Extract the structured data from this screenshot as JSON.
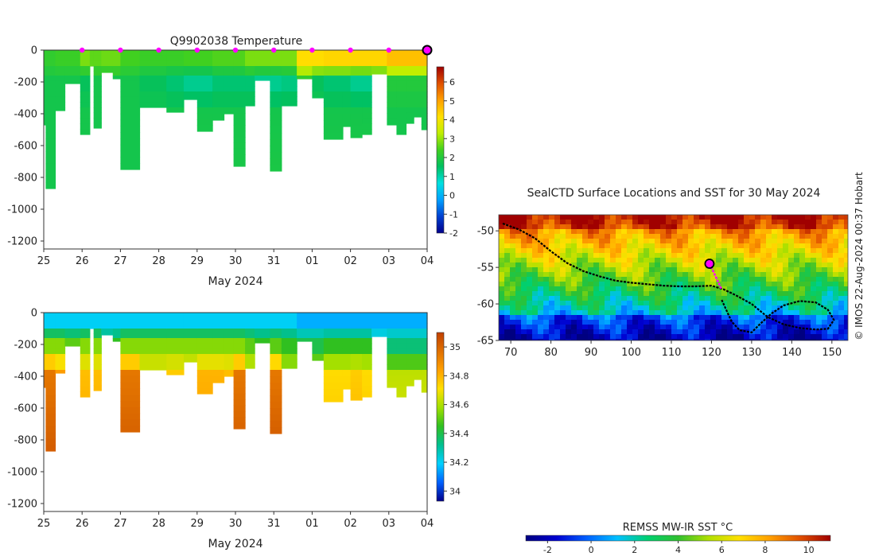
{
  "colors": {
    "temp_scale": [
      "#00008b",
      "#0040d0",
      "#00a0ff",
      "#00e0e0",
      "#00c060",
      "#40d020",
      "#c0ee00",
      "#ffe000",
      "#ffa000",
      "#e05000",
      "#a00000"
    ],
    "sal_scale": [
      "#00008b",
      "#0060ff",
      "#00d0ff",
      "#00c090",
      "#30c020",
      "#a0e000",
      "#ffe000",
      "#ffa000",
      "#e07000",
      "#c04000"
    ],
    "sst_scale": [
      "#000080",
      "#0000d0",
      "#0060ff",
      "#00c0ff",
      "#00d070",
      "#30c030",
      "#b0e000",
      "#ffe000",
      "#ffa000",
      "#e05000",
      "#a00000"
    ],
    "station_marker": "#ff00ff",
    "track": "#000000"
  },
  "chart_data": [
    {
      "id": "temperature_section",
      "type": "heatmap",
      "title": "Q9902038  Temperature",
      "xlabel": "May 2024",
      "ylabel": "",
      "x_ticks": [
        "25",
        "26",
        "27",
        "28",
        "29",
        "30",
        "31",
        "01",
        "02",
        "03",
        "04"
      ],
      "x_range": [
        25,
        35
      ],
      "y_ticks": [
        0,
        -200,
        -400,
        -600,
        -800,
        -1000,
        -1200
      ],
      "ylim": [
        -1250,
        0
      ],
      "colorbar": {
        "ticks": [
          -2,
          -1,
          0,
          1,
          2,
          3,
          4,
          5,
          6
        ],
        "range": [
          -2,
          6.8
        ]
      },
      "station_markers_day": [
        26,
        27,
        28,
        29,
        30,
        31,
        32,
        33,
        34
      ],
      "last_station_day": 35,
      "profiles": [
        {
          "t0": 25.0,
          "t1": 25.05,
          "depth": 470,
          "surf": 2.2,
          "mid": 1.8,
          "deep": 1.8
        },
        {
          "t0": 25.05,
          "t1": 25.3,
          "depth": 870,
          "surf": 2.2,
          "mid": 1.8,
          "deep": 1.8
        },
        {
          "t0": 25.3,
          "t1": 25.55,
          "depth": 380,
          "surf": 2.3,
          "mid": 1.8,
          "deep": 1.8
        },
        {
          "t0": 25.55,
          "t1": 25.95,
          "depth": 210,
          "surf": 2.3,
          "mid": 1.8,
          "deep": 1.8
        },
        {
          "t0": 25.95,
          "t1": 26.2,
          "depth": 530,
          "surf": 2.8,
          "mid": 1.6,
          "deep": 1.8
        },
        {
          "t0": 26.2,
          "t1": 26.3,
          "depth": 100,
          "surf": 2.6,
          "mid": 1.8,
          "deep": 1.8
        },
        {
          "t0": 26.3,
          "t1": 26.5,
          "depth": 490,
          "surf": 2.6,
          "mid": 1.8,
          "deep": 1.8
        },
        {
          "t0": 26.5,
          "t1": 26.8,
          "depth": 140,
          "surf": 2.7,
          "mid": 1.8,
          "deep": 1.8
        },
        {
          "t0": 26.8,
          "t1": 27.0,
          "depth": 180,
          "surf": 2.7,
          "mid": 1.8,
          "deep": 1.8
        },
        {
          "t0": 27.0,
          "t1": 27.5,
          "depth": 750,
          "surf": 2.4,
          "mid": 1.8,
          "deep": 1.8
        },
        {
          "t0": 27.5,
          "t1": 28.2,
          "depth": 360,
          "surf": 2.3,
          "mid": 1.6,
          "deep": 1.8
        },
        {
          "t0": 28.2,
          "t1": 28.65,
          "depth": 390,
          "surf": 2.3,
          "mid": 1.4,
          "deep": 1.8
        },
        {
          "t0": 28.65,
          "t1": 29.0,
          "depth": 310,
          "surf": 2.4,
          "mid": 1.2,
          "deep": 1.8
        },
        {
          "t0": 29.0,
          "t1": 29.4,
          "depth": 510,
          "surf": 2.4,
          "mid": 1.2,
          "deep": 1.8
        },
        {
          "t0": 29.4,
          "t1": 29.7,
          "depth": 440,
          "surf": 2.5,
          "mid": 1.4,
          "deep": 1.8
        },
        {
          "t0": 29.7,
          "t1": 29.95,
          "depth": 400,
          "surf": 2.5,
          "mid": 1.4,
          "deep": 1.8
        },
        {
          "t0": 29.95,
          "t1": 30.25,
          "depth": 730,
          "surf": 2.5,
          "mid": 1.4,
          "deep": 1.8
        },
        {
          "t0": 30.25,
          "t1": 30.5,
          "depth": 350,
          "surf": 2.8,
          "mid": 1.4,
          "deep": 1.8
        },
        {
          "t0": 30.5,
          "t1": 30.9,
          "depth": 190,
          "surf": 2.8,
          "mid": 1.2,
          "deep": 1.8
        },
        {
          "t0": 30.9,
          "t1": 31.2,
          "depth": 760,
          "surf": 2.8,
          "mid": 1.2,
          "deep": 1.8
        },
        {
          "t0": 31.2,
          "t1": 31.6,
          "depth": 350,
          "surf": 2.8,
          "mid": 1.3,
          "deep": 1.8
        },
        {
          "t0": 31.6,
          "t1": 32.0,
          "depth": 180,
          "surf": 4.2,
          "mid": 2.2,
          "deep": 1.8
        },
        {
          "t0": 32.0,
          "t1": 32.3,
          "depth": 300,
          "surf": 4.2,
          "mid": 1.6,
          "deep": 1.8
        },
        {
          "t0": 32.3,
          "t1": 32.8,
          "depth": 560,
          "surf": 4.3,
          "mid": 1.4,
          "deep": 1.8
        },
        {
          "t0": 32.8,
          "t1": 33.0,
          "depth": 480,
          "surf": 4.3,
          "mid": 1.4,
          "deep": 1.8
        },
        {
          "t0": 33.0,
          "t1": 33.3,
          "depth": 550,
          "surf": 4.3,
          "mid": 1.2,
          "deep": 1.8
        },
        {
          "t0": 33.3,
          "t1": 33.55,
          "depth": 530,
          "surf": 4.3,
          "mid": 1.2,
          "deep": 1.8
        },
        {
          "t0": 33.55,
          "t1": 33.95,
          "depth": 150,
          "surf": 4.3,
          "mid": 1.4,
          "deep": 1.8
        },
        {
          "t0": 33.95,
          "t1": 34.2,
          "depth": 470,
          "surf": 4.6,
          "mid": 2.0,
          "deep": 1.8
        },
        {
          "t0": 34.2,
          "t1": 34.45,
          "depth": 530,
          "surf": 4.6,
          "mid": 2.0,
          "deep": 1.8
        },
        {
          "t0": 34.45,
          "t1": 34.65,
          "depth": 460,
          "surf": 4.6,
          "mid": 2.0,
          "deep": 1.8
        },
        {
          "t0": 34.65,
          "t1": 34.85,
          "depth": 420,
          "surf": 4.6,
          "mid": 2.0,
          "deep": 1.8
        },
        {
          "t0": 34.85,
          "t1": 35.0,
          "depth": 500,
          "surf": 4.6,
          "mid": 2.0,
          "deep": 1.8
        }
      ]
    },
    {
      "id": "salinity_section",
      "type": "heatmap",
      "title": "",
      "xlabel": "May 2024",
      "ylabel": "",
      "x_ticks": [
        "25",
        "26",
        "27",
        "28",
        "29",
        "30",
        "31",
        "01",
        "02",
        "03",
        "04"
      ],
      "x_range": [
        25,
        35
      ],
      "y_ticks": [
        0,
        -200,
        -400,
        -600,
        -800,
        -1000,
        -1200
      ],
      "ylim": [
        -1250,
        0
      ],
      "colorbar": {
        "ticks": [
          34,
          34.2,
          34.4,
          34.6,
          34.8,
          35
        ],
        "range": [
          33.93,
          35.1
        ]
      },
      "profiles": [
        {
          "t0": 25.0,
          "t1": 25.05,
          "depth": 470,
          "surf": 34.2,
          "mid": 34.55,
          "deep": 34.95
        },
        {
          "t0": 25.05,
          "t1": 25.3,
          "depth": 870,
          "surf": 34.2,
          "mid": 34.55,
          "deep": 34.95
        },
        {
          "t0": 25.3,
          "t1": 25.55,
          "depth": 380,
          "surf": 34.2,
          "mid": 34.55,
          "deep": 34.85
        },
        {
          "t0": 25.55,
          "t1": 25.95,
          "depth": 210,
          "surf": 34.2,
          "mid": 34.5,
          "deep": 34.6
        },
        {
          "t0": 25.95,
          "t1": 26.2,
          "depth": 530,
          "surf": 34.2,
          "mid": 34.55,
          "deep": 34.78
        },
        {
          "t0": 26.2,
          "t1": 26.3,
          "depth": 100,
          "surf": 34.2,
          "mid": 34.4,
          "deep": 34.4
        },
        {
          "t0": 26.3,
          "t1": 26.5,
          "depth": 490,
          "surf": 34.2,
          "mid": 34.55,
          "deep": 34.78
        },
        {
          "t0": 26.5,
          "t1": 26.8,
          "depth": 140,
          "surf": 34.2,
          "mid": 34.4,
          "deep": 34.45
        },
        {
          "t0": 26.8,
          "t1": 27.0,
          "depth": 180,
          "surf": 34.2,
          "mid": 34.45,
          "deep": 34.5
        },
        {
          "t0": 27.0,
          "t1": 27.5,
          "depth": 750,
          "surf": 34.2,
          "mid": 34.55,
          "deep": 34.95
        },
        {
          "t0": 27.5,
          "t1": 28.2,
          "depth": 360,
          "surf": 34.2,
          "mid": 34.55,
          "deep": 34.72
        },
        {
          "t0": 28.2,
          "t1": 28.65,
          "depth": 390,
          "surf": 34.2,
          "mid": 34.55,
          "deep": 34.75
        },
        {
          "t0": 28.65,
          "t1": 29.0,
          "depth": 310,
          "surf": 34.2,
          "mid": 34.55,
          "deep": 34.7
        },
        {
          "t0": 29.0,
          "t1": 29.4,
          "depth": 510,
          "surf": 34.2,
          "mid": 34.55,
          "deep": 34.8
        },
        {
          "t0": 29.4,
          "t1": 29.7,
          "depth": 440,
          "surf": 34.2,
          "mid": 34.55,
          "deep": 34.8
        },
        {
          "t0": 29.7,
          "t1": 29.95,
          "depth": 400,
          "surf": 34.2,
          "mid": 34.55,
          "deep": 34.78
        },
        {
          "t0": 29.95,
          "t1": 30.25,
          "depth": 730,
          "surf": 34.2,
          "mid": 34.55,
          "deep": 34.95
        },
        {
          "t0": 30.25,
          "t1": 30.5,
          "depth": 350,
          "surf": 34.2,
          "mid": 34.5,
          "deep": 34.7
        },
        {
          "t0": 30.5,
          "t1": 30.9,
          "depth": 190,
          "surf": 34.2,
          "mid": 34.45,
          "deep": 34.5
        },
        {
          "t0": 30.9,
          "t1": 31.2,
          "depth": 760,
          "surf": 34.2,
          "mid": 34.5,
          "deep": 34.95
        },
        {
          "t0": 31.2,
          "t1": 31.6,
          "depth": 350,
          "surf": 34.2,
          "mid": 34.45,
          "deep": 34.65
        },
        {
          "t0": 31.6,
          "t1": 32.0,
          "depth": 180,
          "surf": 34.15,
          "mid": 34.4,
          "deep": 34.45
        },
        {
          "t0": 32.0,
          "t1": 32.3,
          "depth": 300,
          "surf": 34.15,
          "mid": 34.4,
          "deep": 34.6
        },
        {
          "t0": 32.3,
          "t1": 32.8,
          "depth": 560,
          "surf": 34.15,
          "mid": 34.45,
          "deep": 34.72
        },
        {
          "t0": 32.8,
          "t1": 33.0,
          "depth": 480,
          "surf": 34.15,
          "mid": 34.45,
          "deep": 34.72
        },
        {
          "t0": 33.0,
          "t1": 33.3,
          "depth": 550,
          "surf": 34.15,
          "mid": 34.45,
          "deep": 34.75
        },
        {
          "t0": 33.3,
          "t1": 33.55,
          "depth": 530,
          "surf": 34.15,
          "mid": 34.45,
          "deep": 34.72
        },
        {
          "t0": 33.55,
          "t1": 33.95,
          "depth": 150,
          "surf": 34.15,
          "mid": 34.3,
          "deep": 34.35
        },
        {
          "t0": 33.95,
          "t1": 34.2,
          "depth": 470,
          "surf": 34.15,
          "mid": 34.35,
          "deep": 34.62
        },
        {
          "t0": 34.2,
          "t1": 34.45,
          "depth": 530,
          "surf": 34.15,
          "mid": 34.35,
          "deep": 34.62
        },
        {
          "t0": 34.45,
          "t1": 34.65,
          "depth": 460,
          "surf": 34.15,
          "mid": 34.35,
          "deep": 34.62
        },
        {
          "t0": 34.65,
          "t1": 34.85,
          "depth": 420,
          "surf": 34.15,
          "mid": 34.35,
          "deep": 34.62
        },
        {
          "t0": 34.85,
          "t1": 35.0,
          "depth": 500,
          "surf": 34.15,
          "mid": 34.35,
          "deep": 34.62
        }
      ]
    },
    {
      "id": "sst_map",
      "type": "heatmap",
      "title": "SealCTD Surface Locations and SST for 30 May 2024",
      "x_ticks": [
        70,
        80,
        90,
        100,
        110,
        120,
        130,
        140,
        150
      ],
      "x_range": [
        67,
        154
      ],
      "y_ticks": [
        -50,
        -55,
        -60,
        -65
      ],
      "y_range": [
        -65,
        -47.8
      ],
      "colorbar": {
        "label": "REMSS MW-IR SST °C",
        "ticks": [
          -2,
          0,
          2,
          4,
          6,
          8,
          10
        ],
        "range": [
          -3,
          11
        ]
      },
      "track": [
        [
          68,
          -49
        ],
        [
          72,
          -49.8
        ],
        [
          76,
          -51
        ],
        [
          80,
          -52.8
        ],
        [
          84,
          -54.4
        ],
        [
          88,
          -55.5
        ],
        [
          92,
          -56.2
        ],
        [
          96,
          -56.8
        ],
        [
          100,
          -57.1
        ],
        [
          104,
          -57.3
        ],
        [
          108,
          -57.5
        ],
        [
          112,
          -57.6
        ],
        [
          116,
          -57.6
        ],
        [
          120,
          -57.5
        ],
        [
          123,
          -58
        ],
        [
          126,
          -58.8
        ],
        [
          130,
          -60
        ],
        [
          134,
          -61.8
        ],
        [
          138,
          -62.8
        ],
        [
          142,
          -63.3
        ],
        [
          146,
          -63.5
        ],
        [
          149,
          -63.4
        ],
        [
          150.5,
          -62.2
        ],
        [
          149,
          -60.8
        ],
        [
          146,
          -59.8
        ],
        [
          142,
          -59.6
        ],
        [
          138,
          -60.2
        ],
        [
          135,
          -61.3
        ],
        [
          132,
          -62.8
        ],
        [
          130,
          -63.9
        ],
        [
          127,
          -63.6
        ],
        [
          125,
          -62.4
        ],
        [
          123.5,
          -60.6
        ],
        [
          122.5,
          -59.4
        ]
      ],
      "recent_track": [
        [
          119.5,
          -54.5
        ],
        [
          120.5,
          -55.6
        ],
        [
          121.5,
          -56.8
        ],
        [
          122.5,
          -58.0
        ]
      ],
      "current_position": [
        119.5,
        -54.5
      ]
    }
  ],
  "footer": {
    "credit": "© IMOS 22-Aug-2024 00:37 Hobart"
  }
}
